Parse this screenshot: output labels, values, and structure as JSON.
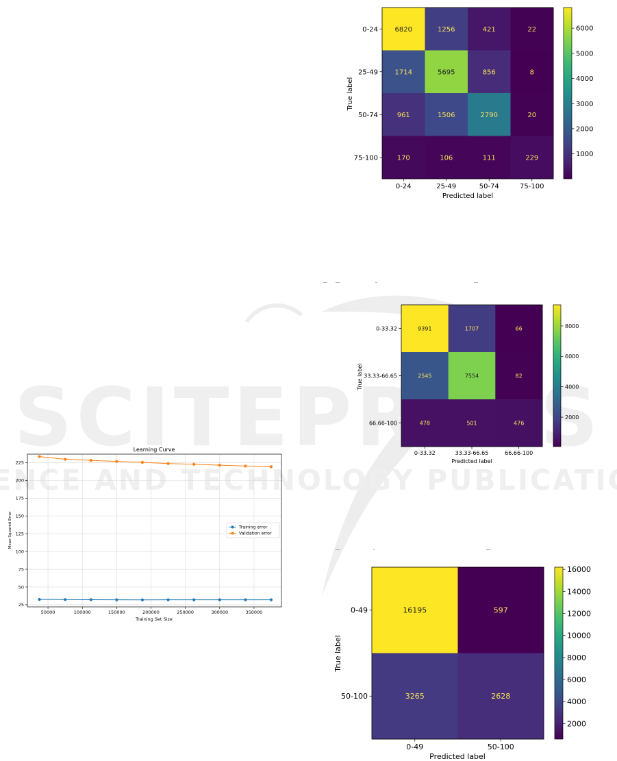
{
  "chart_data": [
    {
      "type": "line",
      "title": "Learning Curve",
      "xlabel": "Training Set Size",
      "ylabel": "Mean Squared Error",
      "x": [
        37500,
        75000,
        112500,
        150000,
        187500,
        225000,
        262500,
        300000,
        337500,
        375000
      ],
      "xticks": [
        50000,
        100000,
        150000,
        200000,
        250000,
        300000,
        350000
      ],
      "yticks": [
        25,
        50,
        75,
        100,
        125,
        150,
        175,
        200,
        225
      ],
      "xlim": [
        20000,
        390000
      ],
      "ylim": [
        22,
        237
      ],
      "grid": true,
      "legend_position": "right",
      "series": [
        {
          "name": "Training error",
          "color": "#1f77b4",
          "values": [
            32.5,
            32.3,
            32.1,
            32.0,
            31.9,
            32.0,
            32.0,
            32.0,
            32.0,
            32.0
          ]
        },
        {
          "name": "Validation error",
          "color": "#ff7f0e",
          "values": [
            233.5,
            229.8,
            228.2,
            226.8,
            225.4,
            223.7,
            222.8,
            221.5,
            220.2,
            219.3
          ]
        }
      ]
    },
    {
      "type": "heatmap",
      "xlabel": "Predicted label",
      "ylabel": "True label",
      "labels": [
        "0-24",
        "25-49",
        "50-74",
        "75-100"
      ],
      "matrix": [
        [
          6820,
          1256,
          421,
          22
        ],
        [
          1714,
          5695,
          856,
          8
        ],
        [
          961,
          1506,
          2790,
          20
        ],
        [
          170,
          106,
          111,
          229
        ]
      ],
      "colorbar_ticks": [
        1000,
        2000,
        3000,
        4000,
        5000,
        6000
      ],
      "colormap": "viridis"
    },
    {
      "type": "heatmap",
      "xlabel": "Predicted label",
      "ylabel": "True label",
      "labels": [
        "0-33.32",
        "33.33-66.65",
        "66.66-100"
      ],
      "matrix": [
        [
          9391,
          1707,
          66
        ],
        [
          2545,
          7554,
          82
        ],
        [
          478,
          501,
          476
        ]
      ],
      "colorbar_ticks": [
        2000,
        4000,
        6000,
        8000
      ],
      "colormap": "viridis"
    },
    {
      "type": "heatmap",
      "xlabel": "Predicted label",
      "ylabel": "True label",
      "labels": [
        "0-49",
        "50-100"
      ],
      "matrix": [
        [
          16195,
          597
        ],
        [
          3265,
          2628
        ]
      ],
      "colorbar_ticks": [
        2000,
        4000,
        6000,
        8000,
        10000,
        12000,
        14000,
        16000
      ],
      "colormap": "viridis"
    }
  ],
  "watermark": {
    "brand": "SCITEPRESS",
    "subtitle": "SCIENCE AND TECHNOLOGY PUBLICATIONS"
  }
}
